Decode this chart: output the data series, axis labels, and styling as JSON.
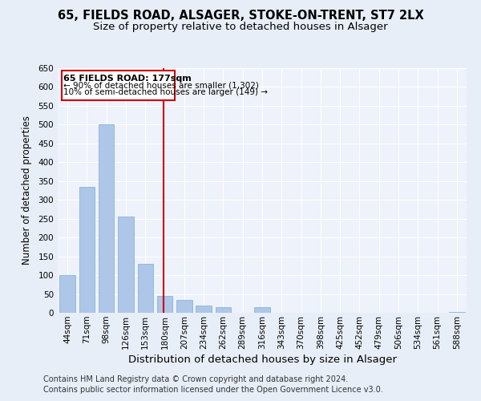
{
  "title_line1": "65, FIELDS ROAD, ALSAGER, STOKE-ON-TRENT, ST7 2LX",
  "title_line2": "Size of property relative to detached houses in Alsager",
  "xlabel": "Distribution of detached houses by size in Alsager",
  "ylabel": "Number of detached properties",
  "bar_categories": [
    "44sqm",
    "71sqm",
    "98sqm",
    "126sqm",
    "153sqm",
    "180sqm",
    "207sqm",
    "234sqm",
    "262sqm",
    "289sqm",
    "316sqm",
    "343sqm",
    "370sqm",
    "398sqm",
    "425sqm",
    "452sqm",
    "479sqm",
    "506sqm",
    "534sqm",
    "561sqm",
    "588sqm"
  ],
  "bar_values": [
    100,
    335,
    500,
    255,
    130,
    45,
    35,
    20,
    15,
    0,
    15,
    0,
    0,
    0,
    0,
    0,
    0,
    0,
    0,
    0,
    3
  ],
  "bar_color": "#aec6e8",
  "bar_edge_color": "#7aaed4",
  "ylim": [
    0,
    650
  ],
  "yticks": [
    0,
    50,
    100,
    150,
    200,
    250,
    300,
    350,
    400,
    450,
    500,
    550,
    600,
    650
  ],
  "vline_x": 4.93,
  "vline_color": "#cc0000",
  "annotation_text_line1": "65 FIELDS ROAD: 177sqm",
  "annotation_text_line2": "← 90% of detached houses are smaller (1,302)",
  "annotation_text_line3": "10% of semi-detached houses are larger (149) →",
  "annotation_box_color": "#ffffff",
  "annotation_box_edge": "#cc0000",
  "bg_color": "#e8eef8",
  "plot_bg_color": "#eef2fa",
  "footer_line1": "Contains HM Land Registry data © Crown copyright and database right 2024.",
  "footer_line2": "Contains public sector information licensed under the Open Government Licence v3.0.",
  "grid_color": "#ffffff",
  "title_fontsize": 10.5,
  "subtitle_fontsize": 9.5,
  "tick_fontsize": 7.5,
  "xlabel_fontsize": 9.5,
  "ylabel_fontsize": 8.5,
  "footer_fontsize": 7.0
}
